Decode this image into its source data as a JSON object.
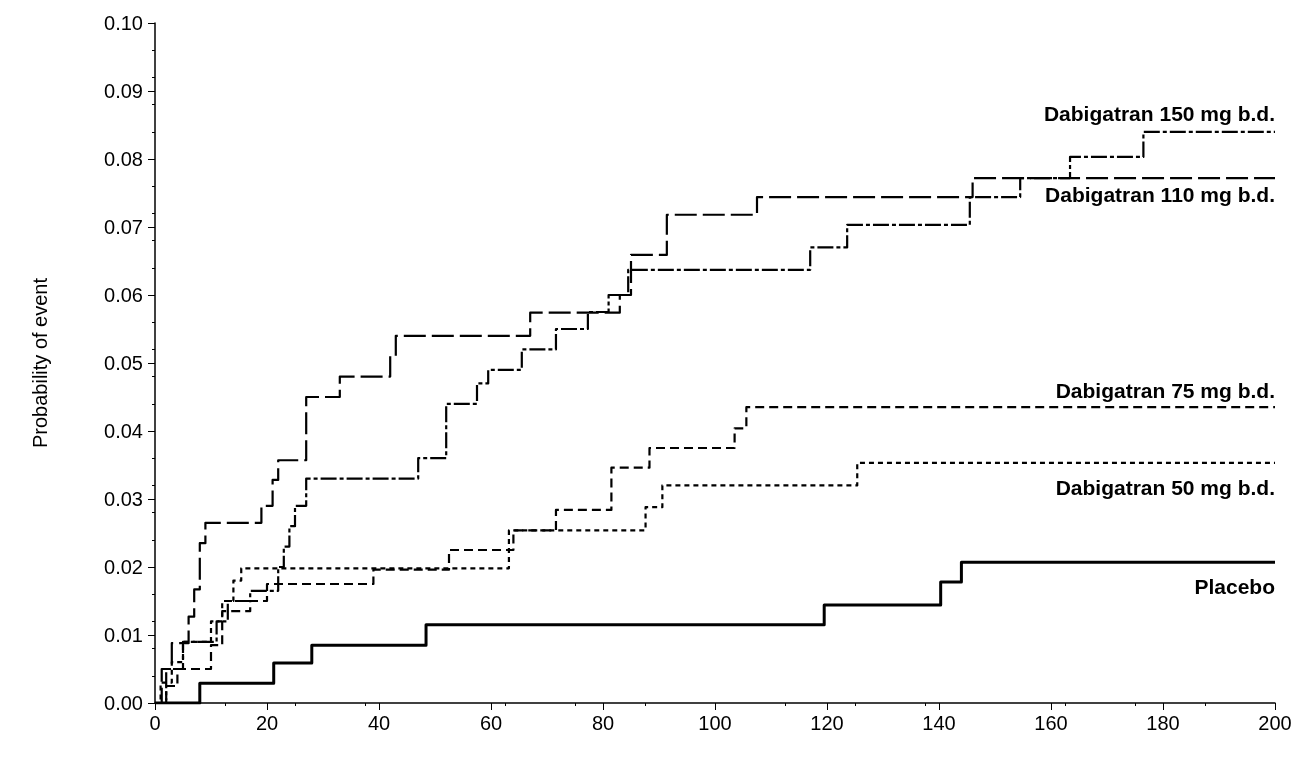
{
  "chart_data": {
    "type": "step",
    "ylabel": "Probability of event",
    "xlim": [
      0,
      200
    ],
    "xticks": [
      0,
      20,
      40,
      60,
      80,
      100,
      120,
      140,
      160,
      180,
      200
    ],
    "ylim": [
      0,
      0.1
    ],
    "yticks": [
      {
        "value": 0,
        "label": "0.00"
      },
      {
        "value": 0.01,
        "label": "0.01"
      },
      {
        "value": 0.02,
        "label": "0.02"
      },
      {
        "value": 0.03,
        "label": "0.03"
      },
      {
        "value": 0.04,
        "label": "0.04"
      },
      {
        "value": 0.05,
        "label": "0.05"
      },
      {
        "value": 0.06,
        "label": "0.06"
      },
      {
        "value": 0.07,
        "label": "0.07"
      },
      {
        "value": 0.08,
        "label": "0.08"
      },
      {
        "value": 0.09,
        "label": "0.09"
      },
      {
        "value": 0.1,
        "label": "0.10"
      }
    ],
    "grid": false,
    "legend": false,
    "marker": "none",
    "series": [
      {
        "name": "Dabigatran 150 mg b.d.",
        "color": "#000000",
        "line_style": "dashed",
        "x": [
          0,
          2,
          5,
          11,
          13,
          17,
          22,
          23,
          24,
          25,
          27,
          47,
          52,
          57.5,
          59.5,
          65.5,
          71.6,
          77.3,
          81,
          84.5,
          117,
          123.6,
          145.5,
          154.5,
          163.4,
          176.5,
          200
        ],
        "values": [
          0,
          0.005,
          0.009,
          0.012,
          0.015,
          0.0165,
          0.02,
          0.023,
          0.026,
          0.029,
          0.033,
          0.036,
          0.044,
          0.047,
          0.049,
          0.052,
          0.055,
          0.0575,
          0.06,
          0.0637,
          0.067,
          0.0703,
          0.0744,
          0.0772,
          0.0803,
          0.084,
          0.084
        ]
      },
      {
        "name": "Dabigatran 110 mg b.d.",
        "color": "#000000",
        "line_style": "dashed",
        "x": [
          0,
          1.2,
          3,
          6,
          7,
          8,
          9,
          19,
          21,
          22,
          27,
          33,
          42,
          43,
          67,
          83,
          85,
          91.4,
          107.5,
          146,
          200
        ],
        "values": [
          0,
          0.005,
          0.0088,
          0.0127,
          0.0167,
          0.0235,
          0.0265,
          0.029,
          0.0328,
          0.0357,
          0.045,
          0.048,
          0.051,
          0.054,
          0.0574,
          0.06,
          0.0659,
          0.0718,
          0.0744,
          0.0772,
          0.0772
        ]
      },
      {
        "name": "Dabigatran 75 mg b.d.",
        "color": "#000000",
        "line_style": "dashed",
        "x": [
          0,
          2,
          4,
          10,
          12,
          17,
          20,
          39,
          52.5,
          64,
          71.6,
          81.5,
          88.3,
          103.5,
          105.6,
          200
        ],
        "values": [
          0,
          0.0025,
          0.005,
          0.0085,
          0.0135,
          0.015,
          0.0175,
          0.0196,
          0.0225,
          0.0254,
          0.0284,
          0.0346,
          0.0375,
          0.0404,
          0.0435,
          0.0435
        ]
      },
      {
        "name": "Dabigatran 50 mg b.d.",
        "color": "#000000",
        "line_style": "dashed",
        "x": [
          0,
          1,
          3,
          5,
          10,
          12,
          14,
          15.4,
          63.2,
          87.6,
          90.6,
          125.4,
          200
        ],
        "values": [
          0,
          0.003,
          0.006,
          0.009,
          0.012,
          0.015,
          0.018,
          0.0198,
          0.0254,
          0.0288,
          0.032,
          0.0353,
          0.0353
        ]
      },
      {
        "name": "Placebo",
        "color": "#000000",
        "line_style": "solid",
        "x": [
          0,
          8,
          21.2,
          28,
          48.4,
          119.5,
          140.3,
          144,
          200
        ],
        "values": [
          0,
          0.0029,
          0.0059,
          0.0085,
          0.0115,
          0.0144,
          0.0178,
          0.0207,
          0.0207
        ]
      }
    ]
  }
}
